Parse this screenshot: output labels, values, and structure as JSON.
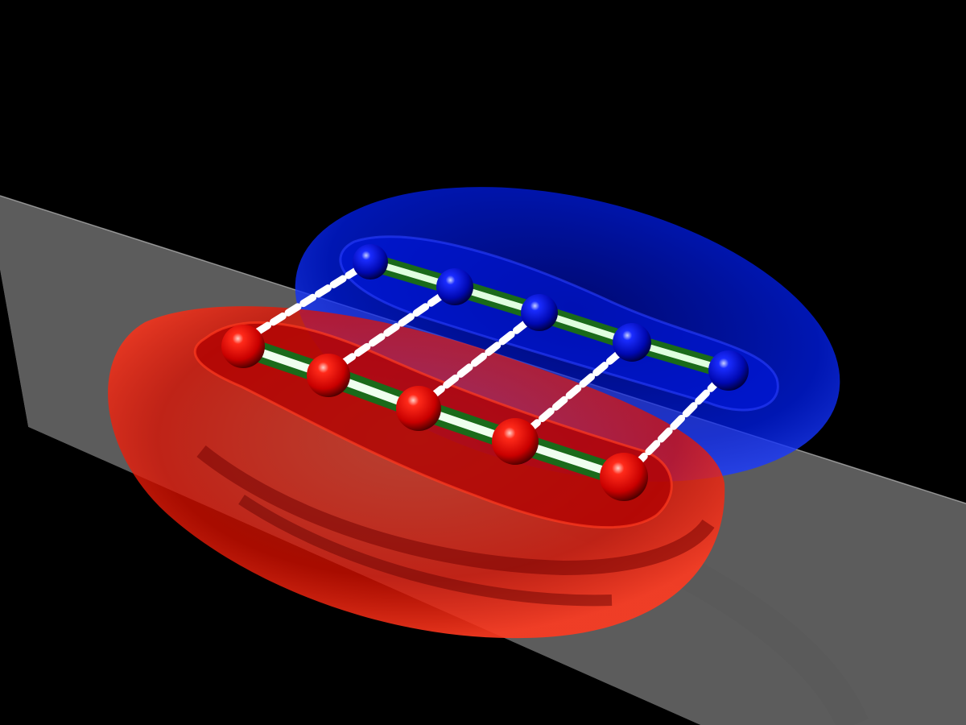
{
  "scene": {
    "background_color": "#000000",
    "plane_color": "#8a8a8a",
    "red_cloud_color": "#ff1a00",
    "blue_cloud_color": "#0022ff",
    "red_atom_color": "#ff0000",
    "blue_atom_color": "#0011ff",
    "bond_color": "#6cff6c",
    "hbond_color": "#ffffff",
    "red_chain_atom_count": 5,
    "blue_chain_atom_count": 5,
    "interchain_link_count": 5
  }
}
